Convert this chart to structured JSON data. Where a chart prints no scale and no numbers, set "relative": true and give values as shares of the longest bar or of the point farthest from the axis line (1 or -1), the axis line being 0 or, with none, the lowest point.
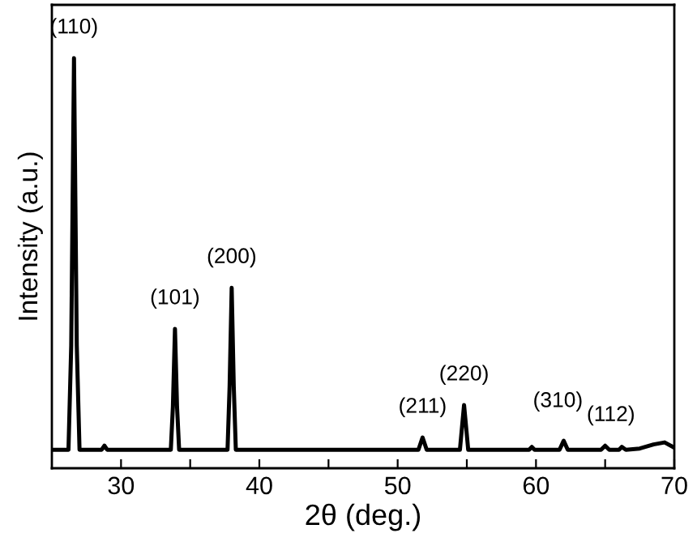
{
  "chart_data": {
    "type": "line",
    "xlabel": "2θ (deg.)",
    "ylabel": "Intensity (a.u.)",
    "relative": true,
    "xlim": [
      25,
      70
    ],
    "xticks": [
      30,
      {
        "value": 35,
        "label": null
      },
      40,
      {
        "value": 45,
        "label": null
      },
      50,
      {
        "value": 55,
        "label": null
      },
      60,
      {
        "value": 65,
        "label": null
      },
      70
    ],
    "tick_labels": "x",
    "grid": false,
    "legend": false,
    "series": [
      {
        "color": "#000000",
        "x": [
          25.1,
          26.2,
          26.4,
          26.6,
          26.8,
          27.0,
          28.6,
          28.8,
          29.0,
          33.6,
          33.75,
          33.9,
          34.05,
          34.2,
          37.7,
          37.85,
          38.0,
          38.15,
          38.3,
          51.5,
          51.8,
          52.1,
          54.5,
          54.65,
          54.8,
          54.95,
          55.1,
          59.5,
          59.7,
          59.9,
          61.7,
          62.0,
          62.3,
          64.7,
          65.0,
          65.3,
          66.0,
          66.2,
          66.5,
          67.5,
          68.5,
          69.3,
          70.0
        ],
        "values": [
          0.045,
          0.045,
          0.3,
          1.0,
          0.3,
          0.045,
          0.045,
          0.055,
          0.045,
          0.045,
          0.15,
          0.34,
          0.15,
          0.045,
          0.045,
          0.2,
          0.44,
          0.2,
          0.045,
          0.045,
          0.075,
          0.045,
          0.045,
          0.1,
          0.154,
          0.1,
          0.045,
          0.045,
          0.052,
          0.045,
          0.045,
          0.067,
          0.045,
          0.045,
          0.055,
          0.045,
          0.045,
          0.052,
          0.045,
          0.048,
          0.058,
          0.063,
          0.05
        ]
      }
    ],
    "annotations": [
      {
        "text": "(110)",
        "x": 26.6,
        "y": 1.0
      },
      {
        "text": "(101)",
        "x": 33.9,
        "y": 0.34
      },
      {
        "text": "(200)",
        "x": 38.0,
        "y": 0.44
      },
      {
        "text": "(211)",
        "x": 51.8,
        "y": 0.075
      },
      {
        "text": "(220)",
        "x": 54.8,
        "y": 0.154
      },
      {
        "text": "(310)",
        "x": 62.0,
        "y": 0.067
      },
      {
        "text": "(112)",
        "x": 65.0,
        "y": 0.055
      }
    ]
  }
}
